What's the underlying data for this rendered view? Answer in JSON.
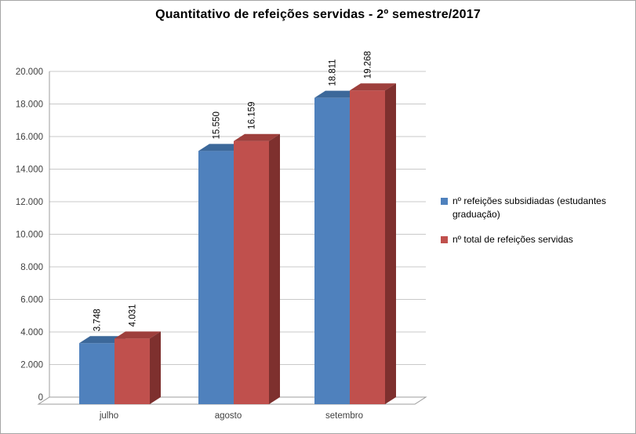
{
  "title": "Quantitativo de refeições servidas - 2º semestre/2017",
  "chart_data": {
    "type": "bar",
    "style": "3d-clustered-column",
    "title": "Quantitativo de refeições servidas - 2º semestre/2017",
    "categories": [
      "julho",
      "agosto",
      "setembro"
    ],
    "series": [
      {
        "name": "nº refeições subsidiadas (estudantes graduação)",
        "values": [
          3748,
          15550,
          18811
        ],
        "labels": [
          "3.748",
          "15.550",
          "18.811"
        ],
        "color": "#4F81BD",
        "top_color": "#3C689A",
        "side_color": "#2E5177"
      },
      {
        "name": "nº total de refeições servidas",
        "values": [
          4031,
          16159,
          19268
        ],
        "labels": [
          "4.031",
          "16.159",
          "19.268"
        ],
        "color": "#C0504D",
        "top_color": "#9E3F3C",
        "side_color": "#7E302E"
      }
    ],
    "xlabel": "",
    "ylabel": "",
    "ylim": [
      0,
      20000
    ],
    "ytick_step": 2000,
    "ytick_labels": [
      "0",
      "2.000",
      "4.000",
      "6.000",
      "8.000",
      "10.000",
      "12.000",
      "14.000",
      "16.000",
      "18.000",
      "20.000"
    ],
    "grid": true,
    "legend_position": "right",
    "data_labels_rotation": "vertical"
  }
}
